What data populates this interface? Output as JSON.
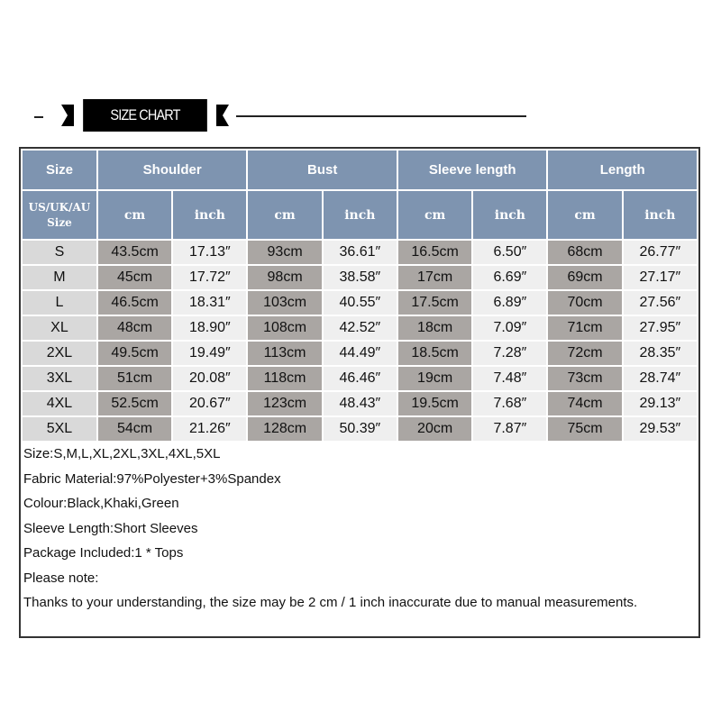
{
  "title": "SIZE CHART",
  "headers": {
    "size": "Size",
    "groups": [
      "Shoulder",
      "Bust",
      "Sleeve length",
      "Length"
    ],
    "size_sub": [
      "US/UK/AU",
      "Size"
    ],
    "cm": "cm",
    "inch": "inch"
  },
  "rows": [
    [
      "S",
      "43.5cm",
      "17.13″",
      "93cm",
      "36.61″",
      "16.5cm",
      "6.50″",
      "68cm",
      "26.77″"
    ],
    [
      "M",
      "45cm",
      "17.72″",
      "98cm",
      "38.58″",
      "17cm",
      "6.69″",
      "69cm",
      "27.17″"
    ],
    [
      "L",
      "46.5cm",
      "18.31″",
      "103cm",
      "40.55″",
      "17.5cm",
      "6.89″",
      "70cm",
      "27.56″"
    ],
    [
      "XL",
      "48cm",
      "18.90″",
      "108cm",
      "42.52″",
      "18cm",
      "7.09″",
      "71cm",
      "27.95″"
    ],
    [
      "2XL",
      "49.5cm",
      "19.49″",
      "113cm",
      "44.49″",
      "18.5cm",
      "7.28″",
      "72cm",
      "28.35″"
    ],
    [
      "3XL",
      "51cm",
      "20.08″",
      "118cm",
      "46.46″",
      "19cm",
      "7.48″",
      "73cm",
      "28.74″"
    ],
    [
      "4XL",
      "52.5cm",
      "20.67″",
      "123cm",
      "48.43″",
      "19.5cm",
      "7.68″",
      "74cm",
      "29.13″"
    ],
    [
      "5XL",
      "54cm",
      "21.26″",
      "128cm",
      "50.39″",
      "20cm",
      "7.87″",
      "75cm",
      "29.53″"
    ]
  ],
  "notes": [
    "Size:S,M,L,XL,2XL,3XL,4XL,5XL",
    "Fabric Material:97%Polyester+3%Spandex",
    "Colour:Black,Khaki,Green",
    "Sleeve Length:Short Sleeves",
    "Package Included:1 * Tops",
    "Please note:",
    "Thanks to your understanding, the size may be 2 cm / 1 inch inaccurate due to manual measurements."
  ],
  "colors": {
    "header": "#7e94b0",
    "cm_cell": "#aaa6a3",
    "inch_cell": "#efefef",
    "size_cell": "#d9d9d9"
  }
}
